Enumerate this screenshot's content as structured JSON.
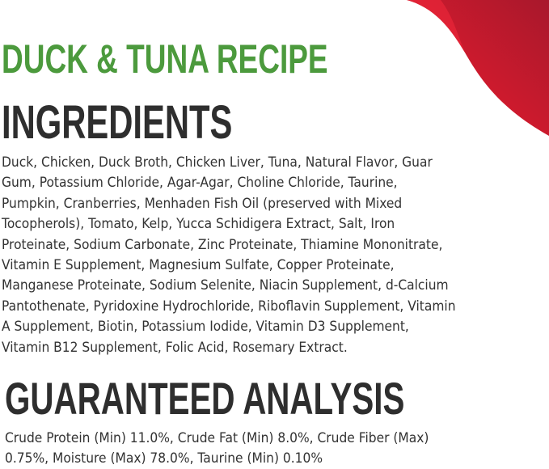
{
  "title": "DUCK & TUNA RECIPE",
  "ingredients": {
    "heading": "INGREDIENTS",
    "lines": [
      "Duck, Chicken, Duck Broth, Chicken Liver, Tuna, Natural Flavor, Guar",
      "Gum, Potassium Chloride, Agar-Agar, Choline Chloride, Taurine,",
      "Pumpkin, Cranberries, Menhaden Fish Oil (preserved with Mixed",
      "Tocopherols), Tomato, Kelp, Yucca Schidigera Extract, Salt, Iron",
      "Proteinate, Sodium Carbonate, Zinc Proteinate, Thiamine Mononitrate,",
      "Vitamin E Supplement, Magnesium Sulfate, Copper Proteinate,",
      "Manganese Proteinate, Sodium Selenite, Niacin Supplement, d-Calcium",
      "Pantothenate, Pyridoxine Hydrochloride, Riboflavin Supplement, Vitamin",
      "A Supplement, Biotin, Potassium Iodide, Vitamin D3 Supplement,",
      "Vitamin B12 Supplement, Folic Acid, Rosemary Extract."
    ]
  },
  "guaranteed_analysis": {
    "heading": "GUARANTEED ANALYSIS",
    "lines": [
      "Crude Protein (Min) 11.0%, Crude Fat (Min) 8.0%, Crude Fiber (Max)",
      "0.75%, Moisture (Max) 78.0%, Taurine (Min) 0.10%"
    ]
  },
  "colors": {
    "title": "#4c9a3d",
    "heading": "#2e2e2e",
    "accent_red": "#e21a2c"
  }
}
